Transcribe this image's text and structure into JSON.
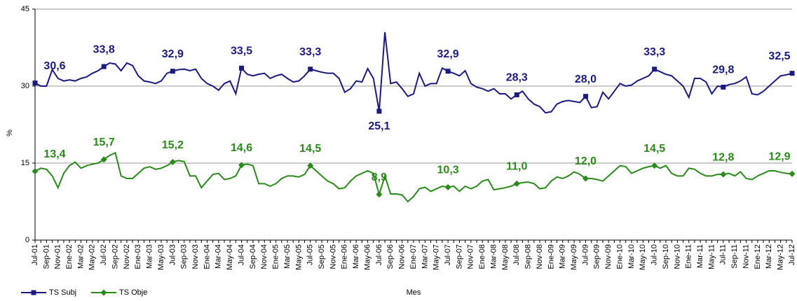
{
  "chart_data": {
    "type": "line",
    "x_label": "Mes",
    "y_label": "%",
    "categories": [
      "Jul-01",
      null,
      "Sep-01",
      null,
      "Nov-01",
      null,
      "Ene-02",
      null,
      "Mar-02",
      null,
      "May-02",
      null,
      "Jul-02",
      null,
      "Sep-02",
      null,
      "Nov-02",
      null,
      "Ene-03",
      null,
      "Mar-03",
      null,
      "May-03",
      null,
      "Jul-03",
      null,
      "Sep-03",
      null,
      "Nov-03",
      null,
      "Ene-04",
      null,
      "Mar-04",
      null,
      "May-04",
      null,
      "Jul-04",
      null,
      "Sep-04",
      null,
      "Nov-04",
      null,
      "Ene-05",
      null,
      "Mar-05",
      null,
      "May-05",
      null,
      "Jul-05",
      null,
      "Sep-05",
      null,
      "Nov-05",
      null,
      "Ene-06",
      null,
      "Mar-06",
      null,
      "May-06",
      null,
      "Jul-06",
      null,
      "Sep-06",
      null,
      "Nov-06",
      null,
      "Ene-07",
      null,
      "Mar-07",
      null,
      "May-07",
      null,
      "Jul-07",
      null,
      "Sep-07",
      null,
      "Nov-07",
      null,
      "Ene-08",
      null,
      "Mar-08",
      null,
      "May-08",
      null,
      "Jul-08",
      null,
      "Sep-08",
      null,
      "Nov-08",
      null,
      "Ene-09",
      null,
      "Mar-09",
      null,
      "May-09",
      null,
      "Jul-09",
      null,
      "Sep-09",
      null,
      "Nov-09",
      null,
      "Ene-10",
      null,
      "Mar-10",
      null,
      "May-10",
      null,
      "Jul-10",
      null,
      "Sep-10",
      null,
      "Nov-10",
      null,
      "Ene-11",
      null,
      "Mar-11",
      null,
      "May-11",
      null,
      "Jul-11",
      null,
      "Sep-11",
      null,
      "Nov-11",
      null,
      "Ene-12",
      null,
      "Mar-12",
      null,
      "May-12",
      null,
      "Jul-12"
    ],
    "series": [
      {
        "name": "TS Subj",
        "color": "#1a1a80",
        "marker": "square",
        "values": [
          30.6,
          30.0,
          30.0,
          33.2,
          31.5,
          31.0,
          31.2,
          31.0,
          31.5,
          31.8,
          32.5,
          33.0,
          33.8,
          34.5,
          34.3,
          33.0,
          34.5,
          34.0,
          32.0,
          31.0,
          30.8,
          30.5,
          31.0,
          32.5,
          32.9,
          33.2,
          33.3,
          33.0,
          33.3,
          31.5,
          30.5,
          30.0,
          29.2,
          30.5,
          31.0,
          28.5,
          33.5,
          32.3,
          32.0,
          32.3,
          32.5,
          31.5,
          32.0,
          32.3,
          31.5,
          30.8,
          31.0,
          32.0,
          33.3,
          33.0,
          32.7,
          32.5,
          32.5,
          31.5,
          28.8,
          29.5,
          31.0,
          30.8,
          33.4,
          31.5,
          25.1,
          40.5,
          30.5,
          30.8,
          29.5,
          28.0,
          28.5,
          32.5,
          30.0,
          30.5,
          30.5,
          33.5,
          32.9,
          32.5,
          32.0,
          33.0,
          30.5,
          29.8,
          29.5,
          29.0,
          29.5,
          28.5,
          28.5,
          27.5,
          28.3,
          29.0,
          27.5,
          26.5,
          26.0,
          24.8,
          25.0,
          26.5,
          27.0,
          27.2,
          27.0,
          26.8,
          28.0,
          25.8,
          26.0,
          28.8,
          27.5,
          29.0,
          30.5,
          30.0,
          30.2,
          31.0,
          31.5,
          32.0,
          33.3,
          32.8,
          32.3,
          32.0,
          31.0,
          30.0,
          27.8,
          31.5,
          31.5,
          30.8,
          28.5,
          30.0,
          29.8,
          30.3,
          30.5,
          31.0,
          31.8,
          28.5,
          28.3,
          29.0,
          30.0,
          31.0,
          32.0,
          32.2,
          32.5
        ],
        "value_labels": [
          "30,6",
          null,
          null,
          null,
          null,
          null,
          null,
          null,
          null,
          null,
          null,
          null,
          "33,8",
          null,
          null,
          null,
          null,
          null,
          null,
          null,
          null,
          null,
          null,
          null,
          "32,9",
          null,
          null,
          null,
          null,
          null,
          null,
          null,
          null,
          null,
          null,
          null,
          "33,5",
          null,
          null,
          null,
          null,
          null,
          null,
          null,
          null,
          null,
          null,
          null,
          "33,3",
          null,
          null,
          null,
          null,
          null,
          null,
          null,
          null,
          null,
          null,
          null,
          "25,1",
          null,
          null,
          null,
          null,
          null,
          null,
          null,
          null,
          null,
          null,
          null,
          "32,9",
          null,
          null,
          null,
          null,
          null,
          null,
          null,
          null,
          null,
          null,
          null,
          "28,3",
          null,
          null,
          null,
          null,
          null,
          null,
          null,
          null,
          null,
          null,
          null,
          "28,0",
          null,
          null,
          null,
          null,
          null,
          null,
          null,
          null,
          null,
          null,
          null,
          "33,3",
          null,
          null,
          null,
          null,
          null,
          null,
          null,
          null,
          null,
          null,
          null,
          "29,8",
          null,
          null,
          null,
          null,
          null,
          null,
          null,
          null,
          null,
          null,
          null,
          "32,5"
        ]
      },
      {
        "name": "TS Obje",
        "color": "#2a8a1a",
        "marker": "diamond",
        "values": [
          13.4,
          14.0,
          13.8,
          12.5,
          10.2,
          13.0,
          14.5,
          15.2,
          14.0,
          14.5,
          14.8,
          15.0,
          15.7,
          16.5,
          17.0,
          12.5,
          12.0,
          12.0,
          13.0,
          14.0,
          14.3,
          13.8,
          14.0,
          14.5,
          15.2,
          15.5,
          15.3,
          12.5,
          12.5,
          10.2,
          11.5,
          12.8,
          13.0,
          11.8,
          12.0,
          12.5,
          14.6,
          14.8,
          14.5,
          11.0,
          11.0,
          10.5,
          11.0,
          12.0,
          12.5,
          12.5,
          12.3,
          12.8,
          14.5,
          13.5,
          12.5,
          11.5,
          11.0,
          10.0,
          10.2,
          11.5,
          12.5,
          13.0,
          13.5,
          13.0,
          8.9,
          12.5,
          9.0,
          9.0,
          8.8,
          7.5,
          8.5,
          10.0,
          10.3,
          9.5,
          10.0,
          10.5,
          10.3,
          10.5,
          9.5,
          10.5,
          10.0,
          10.5,
          11.5,
          11.8,
          9.8,
          10.0,
          10.2,
          10.5,
          11.0,
          11.2,
          11.3,
          11.0,
          10.0,
          10.2,
          11.5,
          12.3,
          12.0,
          12.5,
          13.3,
          12.8,
          12.0,
          12.0,
          11.8,
          11.5,
          12.5,
          13.5,
          14.5,
          14.3,
          13.0,
          13.5,
          14.0,
          14.3,
          14.5,
          14.0,
          14.5,
          13.0,
          12.5,
          12.5,
          14.0,
          13.8,
          13.0,
          12.5,
          12.5,
          12.8,
          12.8,
          13.0,
          12.5,
          13.3,
          12.0,
          11.8,
          12.5,
          13.0,
          13.5,
          13.5,
          13.2,
          13.0,
          12.9
        ],
        "value_labels": [
          "13,4",
          null,
          null,
          null,
          null,
          null,
          null,
          null,
          null,
          null,
          null,
          null,
          "15,7",
          null,
          null,
          null,
          null,
          null,
          null,
          null,
          null,
          null,
          null,
          null,
          "15,2",
          null,
          null,
          null,
          null,
          null,
          null,
          null,
          null,
          null,
          null,
          null,
          "14,6",
          null,
          null,
          null,
          null,
          null,
          null,
          null,
          null,
          null,
          null,
          null,
          "14,5",
          null,
          null,
          null,
          null,
          null,
          null,
          null,
          null,
          null,
          null,
          null,
          "8,9",
          null,
          null,
          null,
          null,
          null,
          null,
          null,
          null,
          null,
          null,
          null,
          "10,3",
          null,
          null,
          null,
          null,
          null,
          null,
          null,
          null,
          null,
          null,
          null,
          "11,0",
          null,
          null,
          null,
          null,
          null,
          null,
          null,
          null,
          null,
          null,
          null,
          "12,0",
          null,
          null,
          null,
          null,
          null,
          null,
          null,
          null,
          null,
          null,
          null,
          "14,5",
          null,
          null,
          null,
          null,
          null,
          null,
          null,
          null,
          null,
          null,
          null,
          "12,8",
          null,
          null,
          null,
          null,
          null,
          null,
          null,
          null,
          null,
          null,
          null,
          "12,9"
        ]
      }
    ],
    "ylim": [
      0,
      45
    ],
    "yticks": [
      0,
      15,
      30,
      45
    ],
    "grid": true,
    "legend": "bottom-left"
  }
}
